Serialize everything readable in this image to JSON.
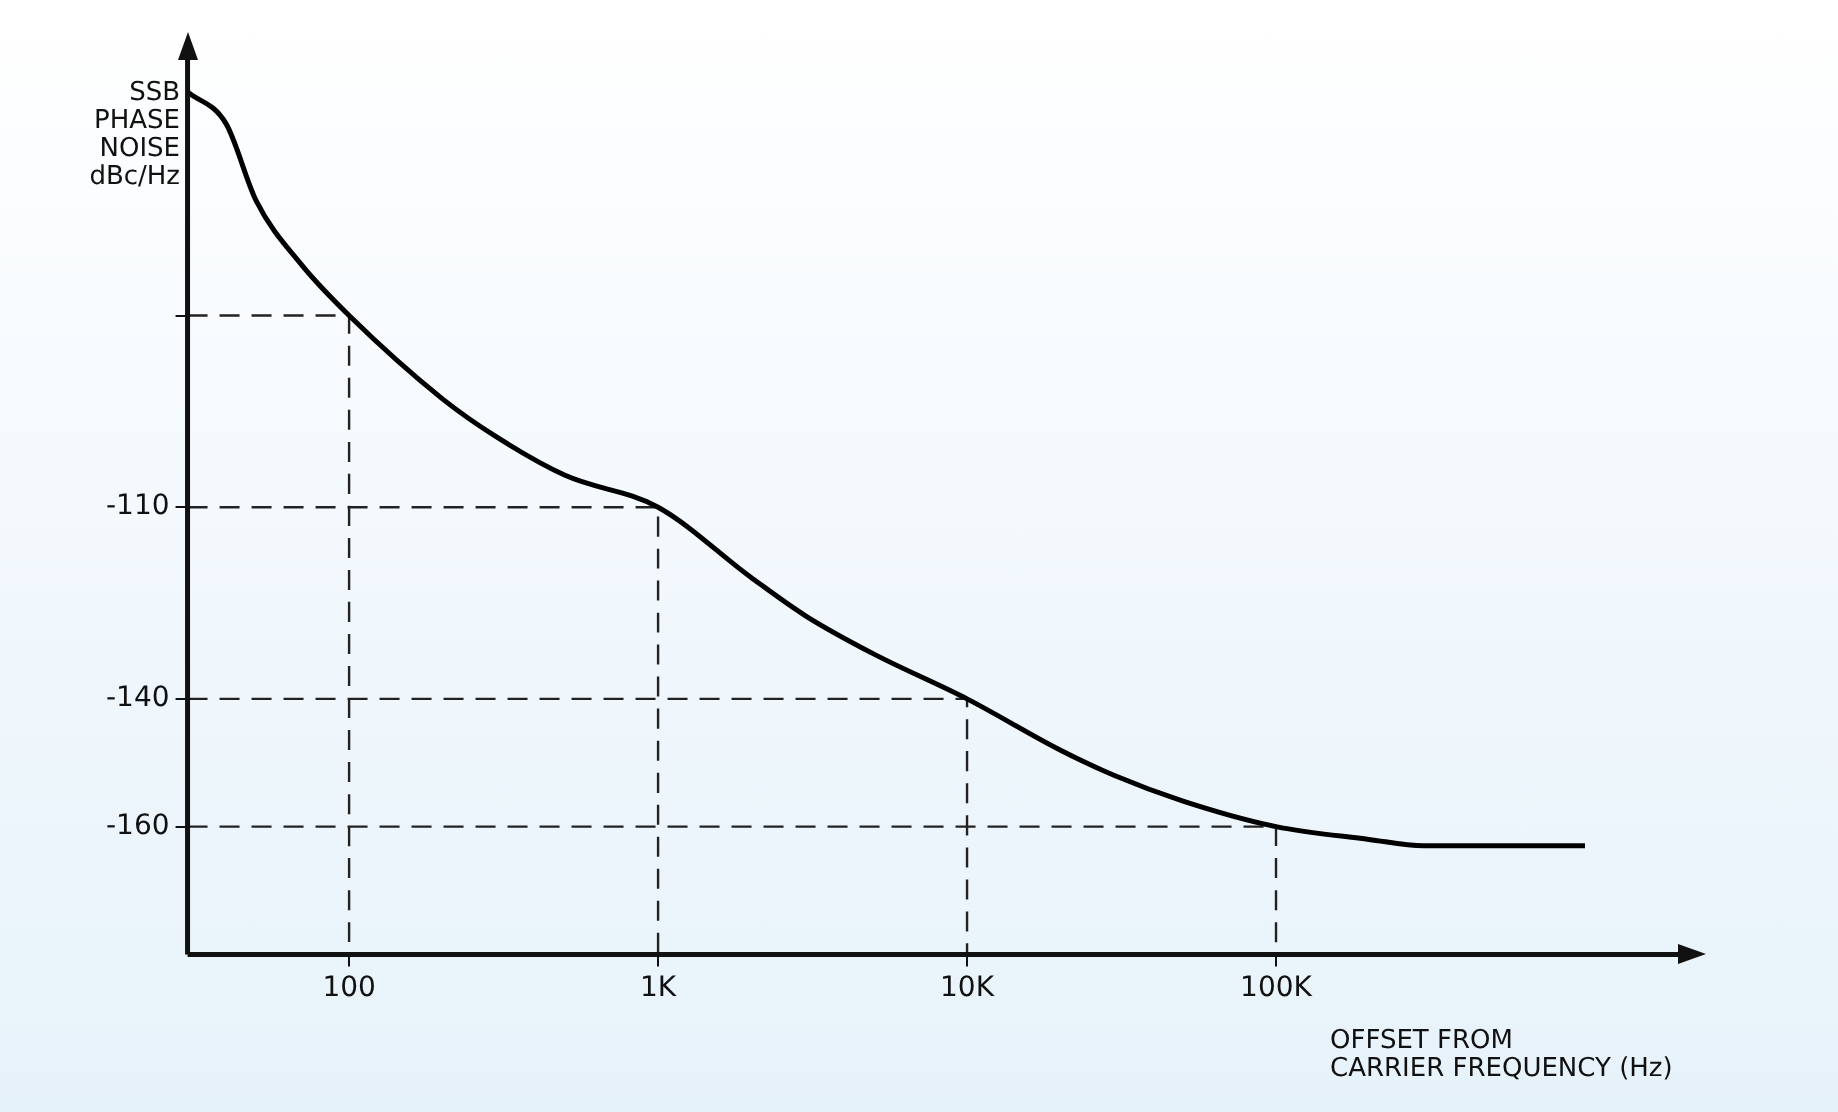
{
  "chart_data": {
    "type": "line",
    "xlabel": "OFFSET FROM\nCARRIER FREQUENCY (Hz)",
    "ylabel": "SSB\nPHASE\nNOISE\ndBc/Hz",
    "log": "x",
    "x": [
      30,
      40,
      50,
      70,
      100,
      200,
      300,
      500,
      1000,
      2000,
      3000,
      5000,
      10000,
      20000,
      30000,
      50000,
      100000,
      200000,
      300000,
      500000,
      1000000
    ],
    "series": [
      {
        "color": "#000000",
        "values": [
          -45,
          -50,
          -62,
          -72,
          -80,
          -93,
          -99,
          -105,
          -110,
          -121,
          -127,
          -133,
          -140,
          -148,
          -152,
          -156,
          -160,
          -162,
          -163,
          -163,
          -163
        ]
      },
      {
        "color": "#222222",
        "line_style": "dashed",
        "x": [
          30,
          100,
          100
        ],
        "values": [
          -80,
          -80,
          -180
        ]
      },
      {
        "color": "#222222",
        "line_style": "dashed",
        "x": [
          30,
          1000,
          1000
        ],
        "values": [
          -110,
          -110,
          -180
        ]
      },
      {
        "color": "#222222",
        "line_style": "dashed",
        "x": [
          30,
          10000,
          10000
        ],
        "values": [
          -140,
          -140,
          -180
        ]
      },
      {
        "color": "#222222",
        "line_style": "dashed",
        "x": [
          30,
          100000,
          100000
        ],
        "values": [
          -160,
          -160,
          -180
        ]
      }
    ],
    "xlim": [
      30,
      2000000
    ],
    "ylim": [
      -180,
      -40
    ],
    "xticks": [
      100,
      {
        "value": 1000,
        "label": "1K"
      },
      {
        "value": 10000,
        "label": "10K"
      },
      {
        "value": 100000,
        "label": "100K"
      }
    ],
    "yticks": [
      {
        "value": -80,
        "label": null
      },
      -110,
      -140,
      -160
    ],
    "grid": false,
    "legend": false,
    "marker": "none",
    "line_style": "solid"
  }
}
